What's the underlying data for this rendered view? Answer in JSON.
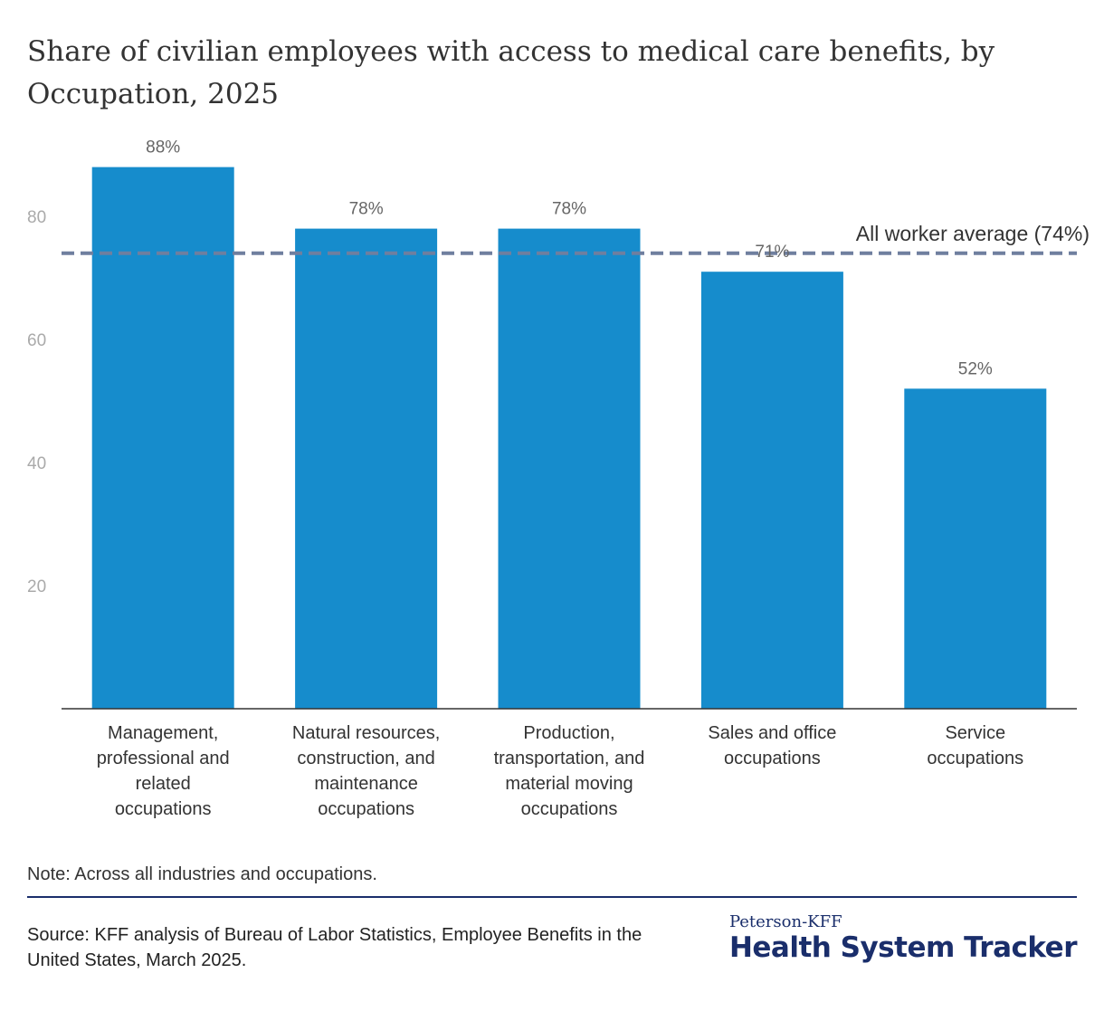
{
  "chart_data": {
    "type": "bar",
    "title": "Share of civilian employees with access to medical care benefits, by Occupation, 2025",
    "categories": [
      [
        "Management,",
        "professional and",
        "related",
        "occupations"
      ],
      [
        "Natural resources,",
        "construction, and",
        "maintenance",
        "occupations"
      ],
      [
        "Production,",
        "transportation, and",
        "material moving",
        "occupations"
      ],
      [
        "Sales and office",
        "occupations"
      ],
      [
        "Service",
        "occupations"
      ]
    ],
    "values": [
      88,
      78,
      78,
      71,
      52
    ],
    "data_labels": [
      "88%",
      "78%",
      "78%",
      "71%",
      "52%"
    ],
    "yticks": [
      20,
      40,
      60,
      80
    ],
    "ylim": [
      0,
      100
    ],
    "xlabel": "",
    "ylabel": "",
    "grid": false,
    "reference_line": {
      "value": 74,
      "label": "All worker average (74%)",
      "color": "#6f7f9f"
    },
    "bar_color": "#168ccc"
  },
  "footer": {
    "note": "Note: Across all industries and occupations.",
    "source": "Source: KFF analysis of Bureau of Labor Statistics, Employee Benefits in the United States, March 2025.",
    "logo_top": "Peterson-KFF",
    "logo_main": "Health System Tracker"
  }
}
